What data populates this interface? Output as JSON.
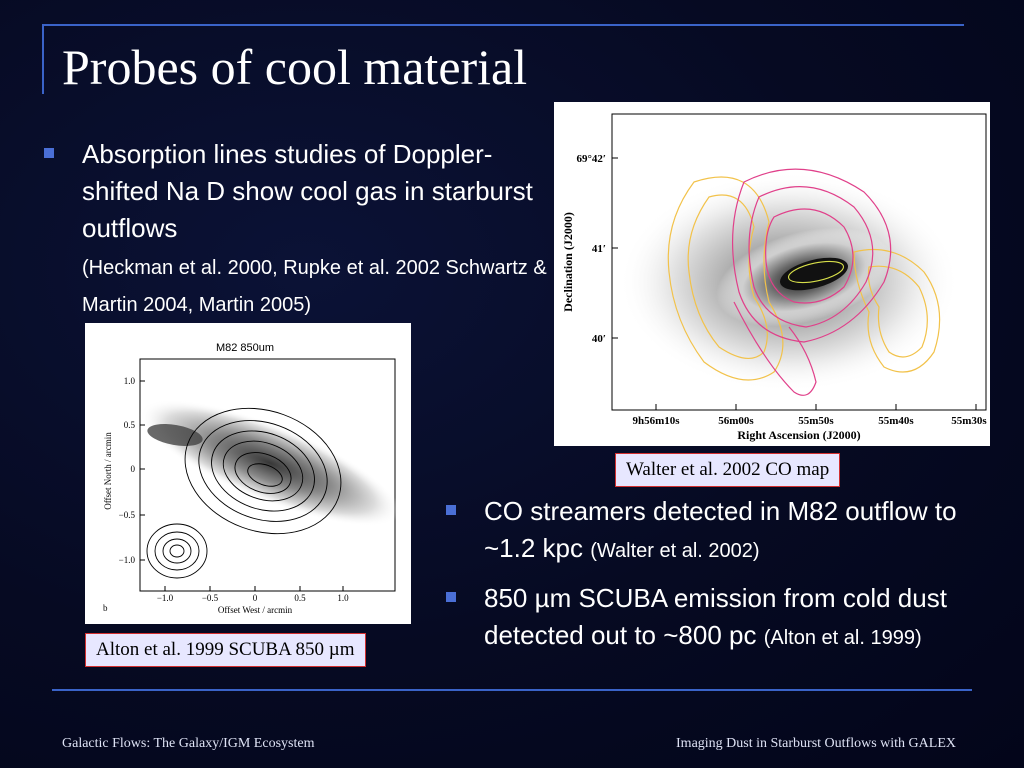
{
  "slide": {
    "title": "Probes of cool material",
    "bullets_top": [
      {
        "text": "Absorption lines studies of Doppler-shifted Na D show cool gas in starburst outflows",
        "citation": "(Heckman et al. 2000, Rupke et al. 2002 Schwartz & Martin 2004, Martin 2005)"
      }
    ],
    "bullets_bottom": [
      {
        "text": "CO streamers detected in M82 outflow to ~1.2 kpc",
        "citation": "(Walter et al. 2002)"
      },
      {
        "text": "850 µm SCUBA emission from cold dust detected out to ~800 pc",
        "citation": "(Alton et al. 1999)"
      }
    ],
    "captions": {
      "co_map": "Walter et al. 2002 CO map",
      "scuba": "Alton et al. 1999 SCUBA 850 µm"
    },
    "footer": {
      "left": "Galactic Flows: The Galaxy/IGM Ecosystem",
      "right": "Imaging Dust in Starburst Outflows with GALEX"
    }
  },
  "co_map": {
    "ylabel": "Declination (J2000)",
    "xlabel": "Right Ascension (J2000)",
    "yticks": [
      "69°42′",
      "41′",
      "40′"
    ],
    "xticks": [
      "9h56m10s",
      "56m00s",
      "55m50s",
      "55m40s",
      "55m30s"
    ]
  },
  "scuba_map": {
    "title": "M82  850um",
    "ylabel": "Offset North  /  arcmin",
    "xlabel": "Offset West  /  arcmin",
    "yticks": [
      "1.0",
      "0.5",
      "0",
      "−0.5",
      "−1.0"
    ],
    "xticks": [
      "−1.0",
      "−0.5",
      "0",
      "0.5",
      "1.0"
    ],
    "panel_label": "b"
  },
  "colors": {
    "background": "#060a22",
    "accent_rule": "#3a63c8",
    "bullet": "#4a6fd6",
    "caption_bg": "#e7e7ff",
    "caption_border": "#d23030",
    "co_contour_yellow": "#f2c24a",
    "co_contour_magenta": "#e0408a"
  }
}
